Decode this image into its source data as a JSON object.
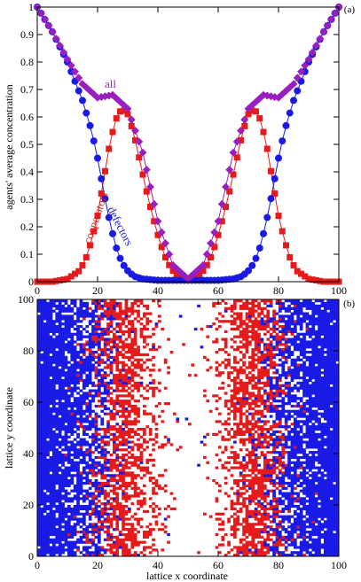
{
  "chart_data": [
    {
      "panel": "(a)",
      "type": "scatter",
      "ylabel": "agents' average concentration",
      "xlim": [
        0,
        100
      ],
      "ylim": [
        0,
        1
      ],
      "xticks": [
        0,
        20,
        40,
        60,
        80,
        100
      ],
      "yticks": [
        0,
        0.1,
        0.2,
        0.3,
        0.4,
        0.5,
        0.6,
        0.7,
        0.8,
        0.9,
        1
      ],
      "series": [
        {
          "name": "all",
          "color": "#9a1fbf",
          "marker": "diamond",
          "x": [
            0,
            5,
            10,
            15,
            20,
            25,
            30,
            35,
            40,
            45,
            50,
            55,
            60,
            65,
            70,
            75,
            80,
            85,
            90,
            95,
            100
          ],
          "y": [
            1.0,
            0.91,
            0.81,
            0.72,
            0.67,
            0.68,
            0.63,
            0.47,
            0.22,
            0.06,
            0.01,
            0.06,
            0.22,
            0.47,
            0.63,
            0.68,
            0.67,
            0.72,
            0.81,
            0.91,
            1.0
          ]
        },
        {
          "name": "defectors",
          "color": "#1a1ae6",
          "marker": "circle",
          "x": [
            0,
            5,
            10,
            15,
            18,
            20,
            22,
            24,
            26,
            28,
            30,
            32,
            35,
            40,
            45,
            50,
            55,
            60,
            65,
            68,
            70,
            72,
            74,
            76,
            78,
            80,
            82,
            85,
            90,
            95,
            100
          ],
          "y": [
            1.0,
            0.91,
            0.8,
            0.66,
            0.55,
            0.45,
            0.33,
            0.22,
            0.13,
            0.07,
            0.04,
            0.02,
            0.01,
            0.005,
            0.005,
            0.005,
            0.005,
            0.005,
            0.01,
            0.02,
            0.04,
            0.07,
            0.13,
            0.22,
            0.33,
            0.45,
            0.55,
            0.66,
            0.8,
            0.91,
            1.0
          ]
        },
        {
          "name": "cooperators",
          "color": "#e61a1a",
          "marker": "square",
          "x": [
            0,
            5,
            10,
            14,
            16,
            18,
            20,
            22,
            24,
            26,
            28,
            30,
            32,
            34,
            36,
            38,
            40,
            42,
            44,
            46,
            48,
            50,
            52,
            54,
            56,
            58,
            60,
            62,
            64,
            66,
            68,
            70,
            72,
            74,
            76,
            78,
            80,
            82,
            84,
            86,
            90,
            95,
            100
          ],
          "y": [
            0.0,
            0.0,
            0.01,
            0.04,
            0.08,
            0.15,
            0.24,
            0.37,
            0.5,
            0.59,
            0.63,
            0.61,
            0.54,
            0.44,
            0.34,
            0.25,
            0.17,
            0.1,
            0.055,
            0.025,
            0.01,
            0.005,
            0.01,
            0.025,
            0.055,
            0.1,
            0.17,
            0.25,
            0.34,
            0.44,
            0.54,
            0.61,
            0.63,
            0.59,
            0.5,
            0.37,
            0.24,
            0.15,
            0.08,
            0.04,
            0.01,
            0.0,
            0.0
          ]
        }
      ]
    },
    {
      "panel": "(b)",
      "type": "heatmap",
      "xlabel": "lattice x coordinate",
      "ylabel": "lattice y coordinate",
      "xlim": [
        0,
        100
      ],
      "ylim": [
        0,
        100
      ],
      "xticks": [
        0,
        20,
        40,
        60,
        80,
        100
      ],
      "yticks": [
        0,
        20,
        40,
        60,
        80,
        100
      ],
      "legend": [
        {
          "name": "defectors",
          "color": "#1a1ae6"
        },
        {
          "name": "cooperators",
          "color": "#e61a1a"
        },
        {
          "name": "empty",
          "color": "#ffffff"
        }
      ]
    }
  ]
}
